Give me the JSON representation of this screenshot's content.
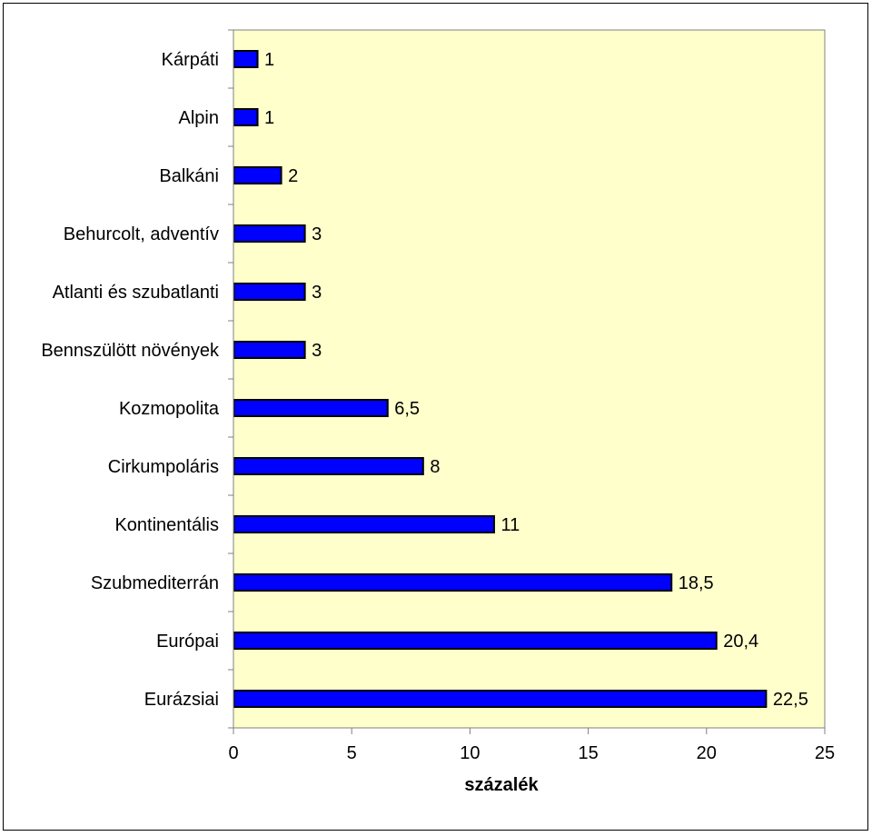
{
  "chart_data": {
    "type": "bar",
    "orientation": "horizontal",
    "categories": [
      "Kárpáti",
      "Alpin",
      "Balkáni",
      "Behurcolt, adventív",
      "Atlanti és szubatlanti",
      "Bennszülött növények",
      "Kozmopolita",
      "Cirkumpoláris",
      "Kontinentális",
      "Szubmediterrán",
      "Európai",
      "Eurázsiai"
    ],
    "values": [
      1,
      1,
      2,
      3,
      3,
      3,
      6.5,
      8,
      11,
      18.5,
      20.4,
      22.5
    ],
    "value_labels": [
      "1",
      "1",
      "2",
      "3",
      "3",
      "3",
      "6,5",
      "8",
      "11",
      "18,5",
      "20,4",
      "22,5"
    ],
    "xlim": [
      0,
      25
    ],
    "xticks": [
      0,
      5,
      10,
      15,
      20,
      25
    ],
    "xtick_labels": [
      "0",
      "5",
      "10",
      "15",
      "20",
      "25"
    ],
    "xlabel": "százalék",
    "ylabel": "",
    "title": "",
    "grid": false,
    "legend": "none",
    "colors": {
      "bar_fill": "#0000ff",
      "bar_stroke": "#000000",
      "plot_background": "#ffffcc"
    }
  }
}
